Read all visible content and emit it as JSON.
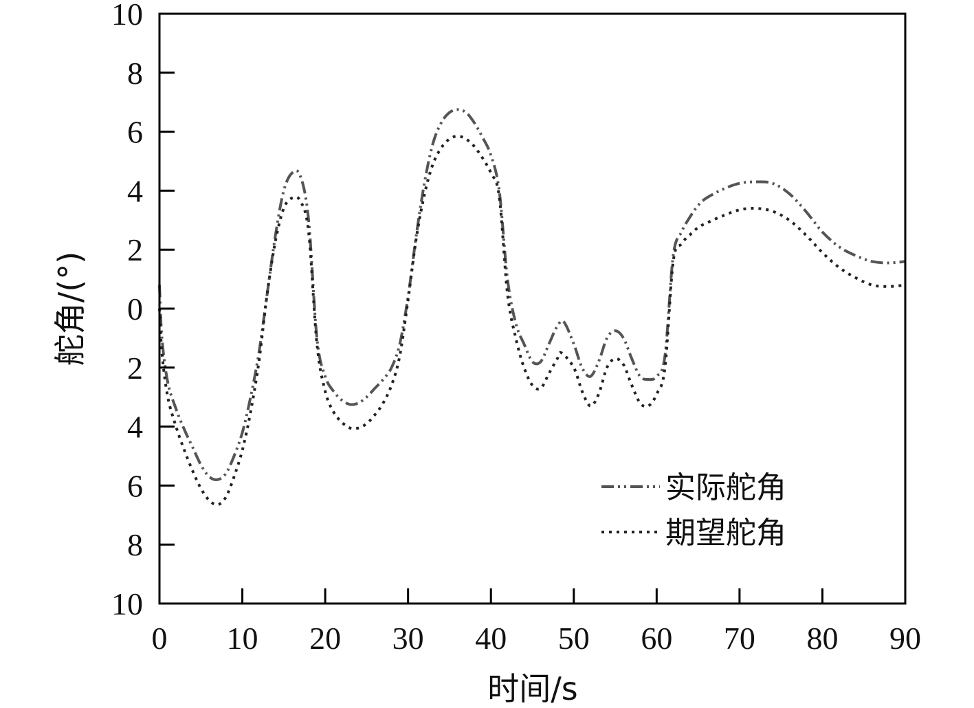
{
  "chart_data": {
    "type": "line",
    "title": "",
    "xlabel": "时间/s",
    "ylabel": "舵角/(°)",
    "xlim": [
      0,
      90
    ],
    "ylim": [
      -10,
      10
    ],
    "x_ticks": [
      0,
      10,
      20,
      30,
      40,
      50,
      60,
      70,
      80,
      90
    ],
    "y_ticks": [
      10,
      8,
      6,
      4,
      2,
      0,
      -2,
      -4,
      -6,
      -8,
      -10
    ],
    "y_tick_labels": [
      "10",
      "8",
      "6",
      "4",
      "2",
      "0",
      "2",
      "4",
      "6",
      "8",
      "10"
    ],
    "legend_position": "bottom-right",
    "series": [
      {
        "name": "实际舵角",
        "style": "dash-dot-dot",
        "color": "#555555",
        "points": [
          [
            0,
            0.8
          ],
          [
            0.3,
            -1.0
          ],
          [
            1,
            -2.5
          ],
          [
            2,
            -3.4
          ],
          [
            3,
            -4.1
          ],
          [
            4,
            -4.7
          ],
          [
            5,
            -5.3
          ],
          [
            6,
            -5.7
          ],
          [
            7,
            -5.8
          ],
          [
            8,
            -5.6
          ],
          [
            9,
            -5.0
          ],
          [
            10,
            -4.2
          ],
          [
            11,
            -3.0
          ],
          [
            12,
            -1.5
          ],
          [
            13,
            0.5
          ],
          [
            14,
            2.5
          ],
          [
            15,
            4.0
          ],
          [
            16,
            4.6
          ],
          [
            17,
            4.5
          ],
          [
            18,
            3.0
          ],
          [
            19,
            -1.0
          ],
          [
            20,
            -2.3
          ],
          [
            21,
            -2.8
          ],
          [
            22,
            -3.1
          ],
          [
            23,
            -3.25
          ],
          [
            24,
            -3.2
          ],
          [
            25,
            -3.0
          ],
          [
            26,
            -2.7
          ],
          [
            27,
            -2.4
          ],
          [
            28,
            -2.0
          ],
          [
            29,
            -1.2
          ],
          [
            30,
            0.4
          ],
          [
            31,
            2.5
          ],
          [
            32,
            4.3
          ],
          [
            33,
            5.6
          ],
          [
            34,
            6.3
          ],
          [
            35,
            6.65
          ],
          [
            36,
            6.75
          ],
          [
            37,
            6.65
          ],
          [
            38,
            6.3
          ],
          [
            39,
            5.8
          ],
          [
            40,
            5.2
          ],
          [
            41,
            4.0
          ],
          [
            42,
            1.0
          ],
          [
            43,
            -0.5
          ],
          [
            44,
            -1.2
          ],
          [
            45,
            -1.8
          ],
          [
            46,
            -1.8
          ],
          [
            47,
            -1.2
          ],
          [
            48,
            -0.6
          ],
          [
            48.8,
            -0.45
          ],
          [
            50,
            -1.2
          ],
          [
            51,
            -2.0
          ],
          [
            52,
            -2.3
          ],
          [
            53,
            -1.8
          ],
          [
            54,
            -1.0
          ],
          [
            55,
            -0.75
          ],
          [
            56,
            -1.0
          ],
          [
            57,
            -1.7
          ],
          [
            58,
            -2.3
          ],
          [
            59,
            -2.4
          ],
          [
            60,
            -2.3
          ],
          [
            61,
            -1.6
          ],
          [
            62,
            1.8
          ],
          [
            63,
            2.6
          ],
          [
            64,
            3.1
          ],
          [
            65,
            3.5
          ],
          [
            66,
            3.75
          ],
          [
            68,
            4.05
          ],
          [
            70,
            4.25
          ],
          [
            72,
            4.3
          ],
          [
            74,
            4.25
          ],
          [
            76,
            3.9
          ],
          [
            78,
            3.3
          ],
          [
            80,
            2.6
          ],
          [
            82,
            2.1
          ],
          [
            84,
            1.8
          ],
          [
            86,
            1.6
          ],
          [
            88,
            1.55
          ],
          [
            90,
            1.6
          ]
        ]
      },
      {
        "name": "期望舵角",
        "style": "dotted",
        "color": "#222222",
        "points": [
          [
            0,
            0.0
          ],
          [
            0.3,
            -1.5
          ],
          [
            1,
            -3.0
          ],
          [
            2,
            -4.0
          ],
          [
            3,
            -4.8
          ],
          [
            4,
            -5.5
          ],
          [
            5,
            -6.1
          ],
          [
            6,
            -6.5
          ],
          [
            7,
            -6.65
          ],
          [
            8,
            -6.4
          ],
          [
            9,
            -5.7
          ],
          [
            10,
            -4.8
          ],
          [
            11,
            -3.5
          ],
          [
            12,
            -1.8
          ],
          [
            13,
            0.5
          ],
          [
            14,
            2.3
          ],
          [
            15,
            3.4
          ],
          [
            16,
            3.75
          ],
          [
            17,
            3.65
          ],
          [
            18,
            2.6
          ],
          [
            19,
            -1.2
          ],
          [
            20,
            -2.8
          ],
          [
            21,
            -3.5
          ],
          [
            22,
            -3.85
          ],
          [
            23,
            -4.05
          ],
          [
            24,
            -4.05
          ],
          [
            25,
            -3.9
          ],
          [
            26,
            -3.6
          ],
          [
            27,
            -3.2
          ],
          [
            28,
            -2.6
          ],
          [
            29,
            -1.6
          ],
          [
            30,
            0.3
          ],
          [
            31,
            2.4
          ],
          [
            32,
            3.9
          ],
          [
            33,
            4.9
          ],
          [
            34,
            5.45
          ],
          [
            35,
            5.75
          ],
          [
            36,
            5.85
          ],
          [
            37,
            5.75
          ],
          [
            38,
            5.5
          ],
          [
            39,
            5.1
          ],
          [
            40,
            4.6
          ],
          [
            41,
            3.8
          ],
          [
            42,
            0.5
          ],
          [
            43,
            -1.0
          ],
          [
            44,
            -2.0
          ],
          [
            45,
            -2.6
          ],
          [
            46,
            -2.7
          ],
          [
            47,
            -2.2
          ],
          [
            48,
            -1.7
          ],
          [
            48.5,
            -1.5
          ],
          [
            50,
            -2.0
          ],
          [
            51,
            -2.8
          ],
          [
            52,
            -3.3
          ],
          [
            53,
            -2.9
          ],
          [
            54,
            -2.0
          ],
          [
            55,
            -1.7
          ],
          [
            56,
            -1.9
          ],
          [
            57,
            -2.6
          ],
          [
            58,
            -3.2
          ],
          [
            59,
            -3.3
          ],
          [
            60,
            -2.9
          ],
          [
            61,
            -2.0
          ],
          [
            62,
            1.6
          ],
          [
            63,
            2.2
          ],
          [
            64,
            2.5
          ],
          [
            65,
            2.75
          ],
          [
            66,
            2.9
          ],
          [
            68,
            3.15
          ],
          [
            70,
            3.35
          ],
          [
            72,
            3.4
          ],
          [
            74,
            3.3
          ],
          [
            76,
            3.0
          ],
          [
            78,
            2.5
          ],
          [
            80,
            1.9
          ],
          [
            82,
            1.4
          ],
          [
            84,
            1.05
          ],
          [
            86,
            0.8
          ],
          [
            88,
            0.75
          ],
          [
            90,
            0.8
          ]
        ]
      }
    ]
  }
}
